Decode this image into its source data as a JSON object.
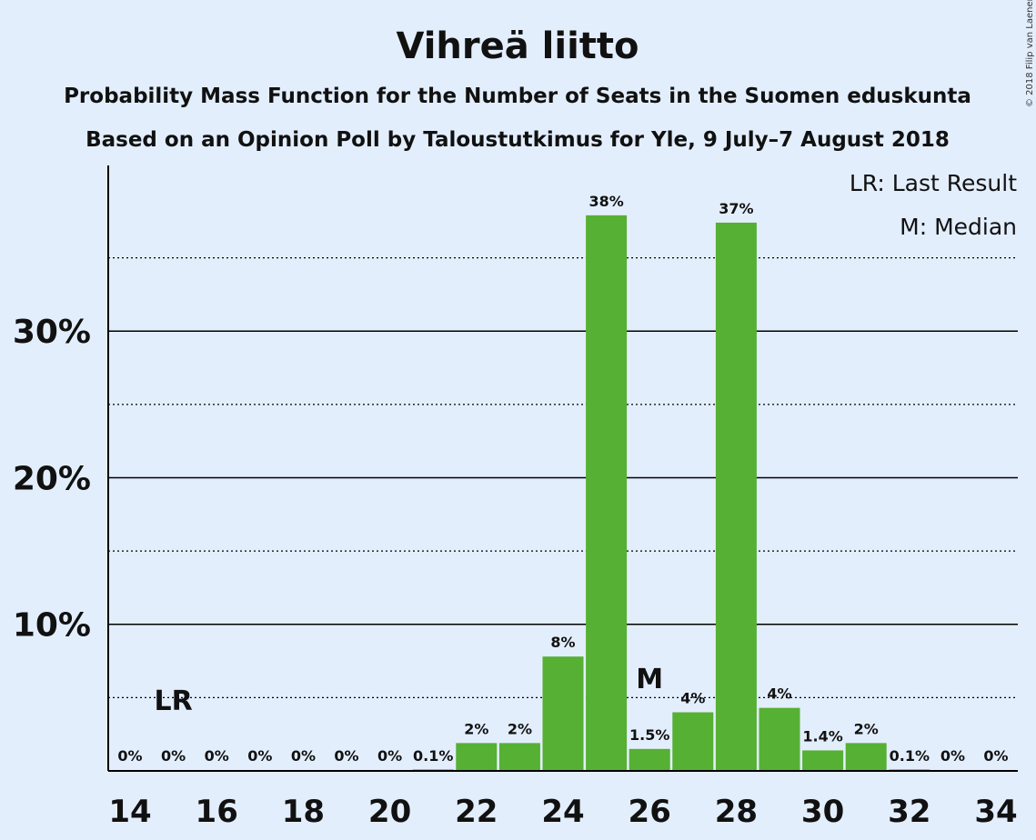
{
  "copyright": "© 2018 Filip van Laenen",
  "chart_data": {
    "type": "bar",
    "title": "Vihreä liitto",
    "subtitle_1": "Probability Mass Function for the Number of Seats in the Suomen eduskunta",
    "subtitle_2": "Based on an Opinion Poll by Taloustutkimus for Yle, 9 July–7 August 2018",
    "legend": [
      "LR: Last Result",
      "M: Median"
    ],
    "legend_position": "top-right",
    "x": [
      14,
      15,
      16,
      17,
      18,
      19,
      20,
      21,
      22,
      23,
      24,
      25,
      26,
      27,
      28,
      29,
      30,
      31,
      32,
      33,
      34
    ],
    "values": [
      0,
      0,
      0,
      0,
      0,
      0,
      0,
      0.1,
      1.9,
      1.9,
      7.8,
      37.9,
      1.5,
      4.0,
      37.4,
      4.3,
      1.4,
      1.9,
      0.1,
      0,
      0
    ],
    "value_labels": [
      "0%",
      "0%",
      "0%",
      "0%",
      "0%",
      "0%",
      "0%",
      "0.1%",
      "2%",
      "2%",
      "8%",
      "38%",
      "1.5%",
      "4%",
      "37%",
      "4%",
      "1.4%",
      "2%",
      "0.1%",
      "0%",
      "0%"
    ],
    "x_ticks": [
      "14",
      "16",
      "18",
      "20",
      "22",
      "24",
      "26",
      "28",
      "30",
      "32",
      "34"
    ],
    "y_ticks": [
      {
        "value": 10,
        "label": "10%"
      },
      {
        "value": 20,
        "label": "20%"
      },
      {
        "value": 30,
        "label": "30%"
      }
    ],
    "minor_gridlines": [
      5,
      15,
      25,
      35
    ],
    "ylim": [
      0,
      41.3
    ],
    "last_result": {
      "x": 15,
      "label": "LR"
    },
    "median": {
      "x": 26,
      "label": "M"
    },
    "bar_color": "#56b033"
  }
}
